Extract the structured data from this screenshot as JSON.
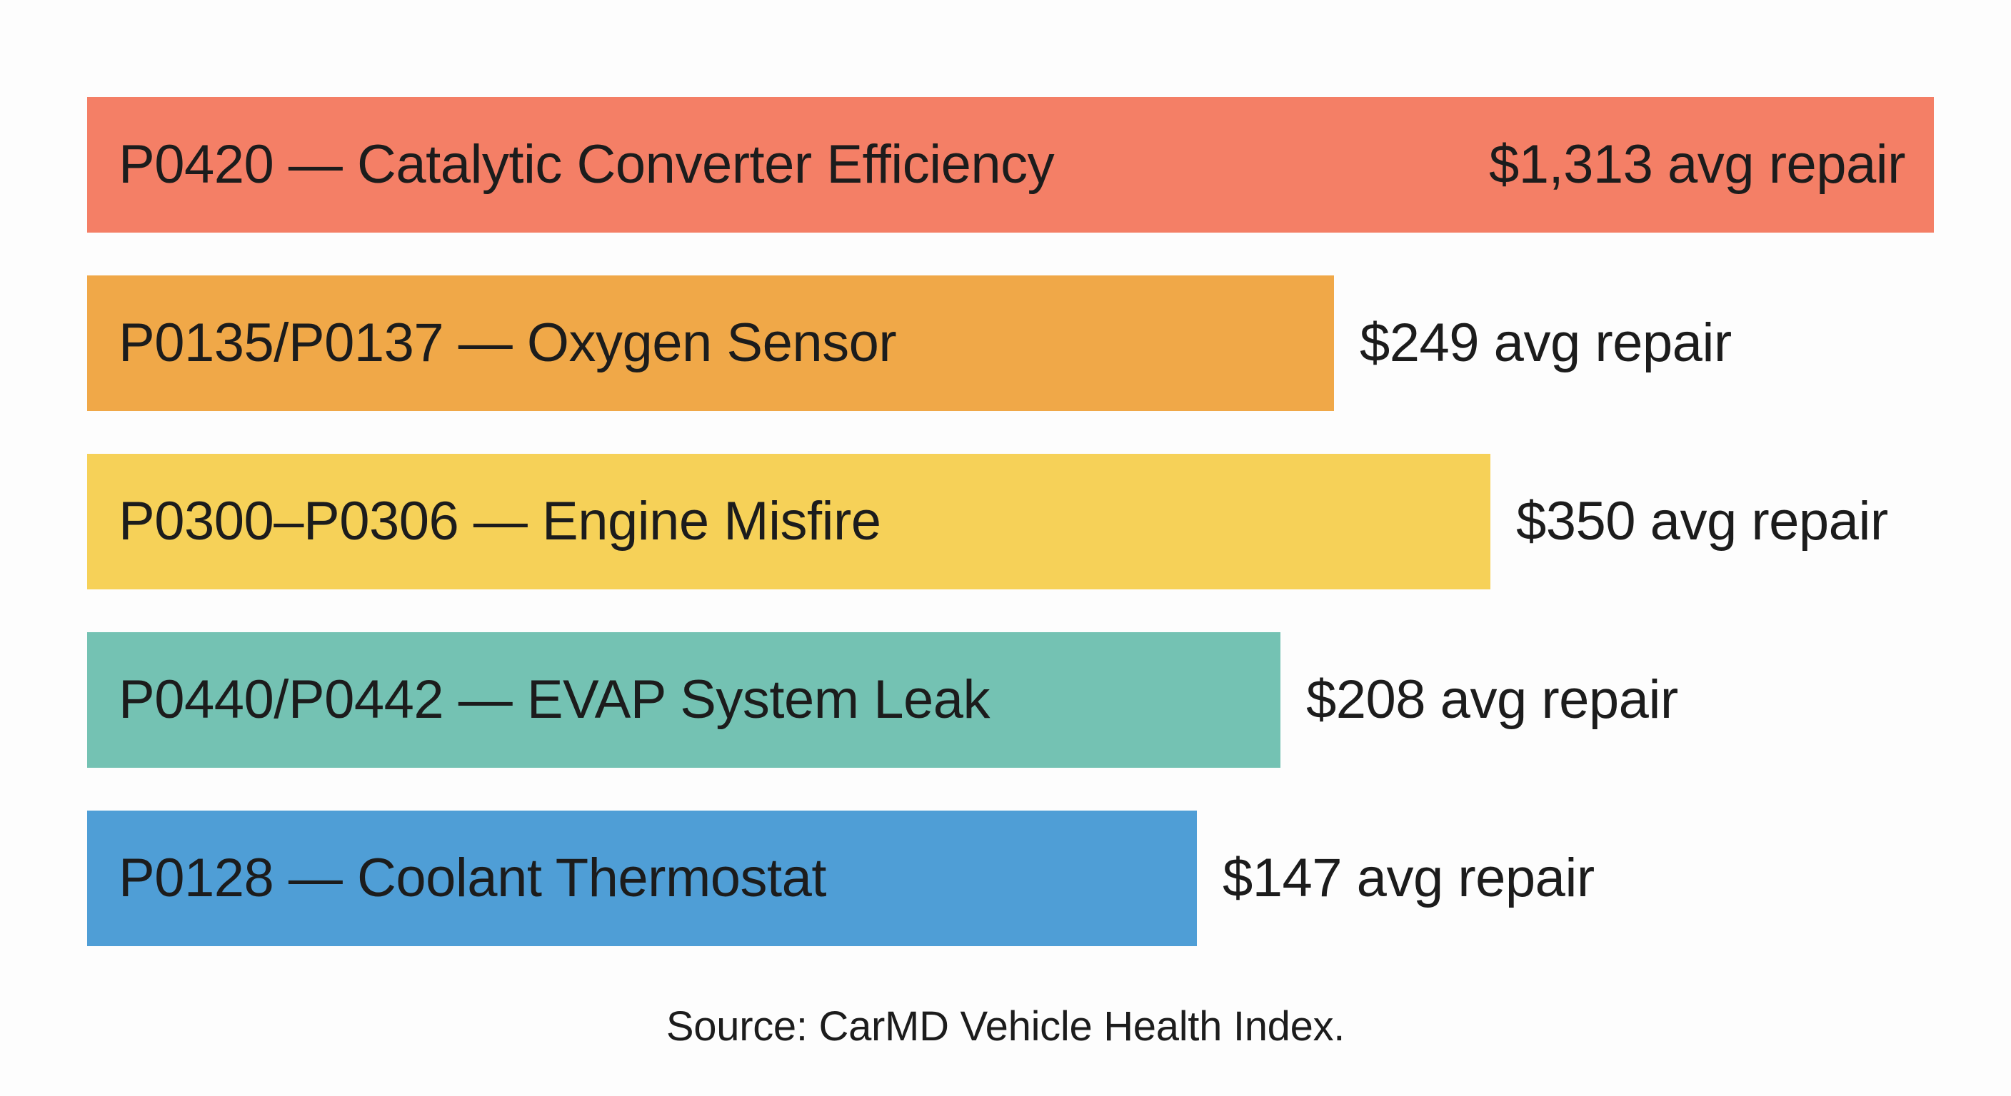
{
  "chart_data": {
    "type": "bar",
    "orientation": "horizontal",
    "title": "",
    "xlabel": "",
    "ylabel": "",
    "categories": [
      "P0420 — Catalytic Converter Efficiency",
      "P0135/P0137 — Oxygen Sensor",
      "P0300–P0306 — Engine Misfire",
      "P0440/P0442 — EVAP System Leak",
      "P0128 — Coolant Thermostat"
    ],
    "values": [
      1313,
      249,
      350,
      208,
      147
    ],
    "value_labels": [
      "$1,313 avg repair",
      "$249 avg repair",
      "$350 avg repair",
      "$208 avg repair",
      "$147 avg repair"
    ],
    "bar_lengths_relative": [
      1.0,
      0.675,
      0.76,
      0.646,
      0.601
    ],
    "colors": [
      "#f47f66",
      "#f0a848",
      "#f6d158",
      "#74c2b3",
      "#4f9ed6"
    ],
    "grid": false,
    "legend": "none"
  },
  "source": "Source: CarMD Vehicle Health Index."
}
